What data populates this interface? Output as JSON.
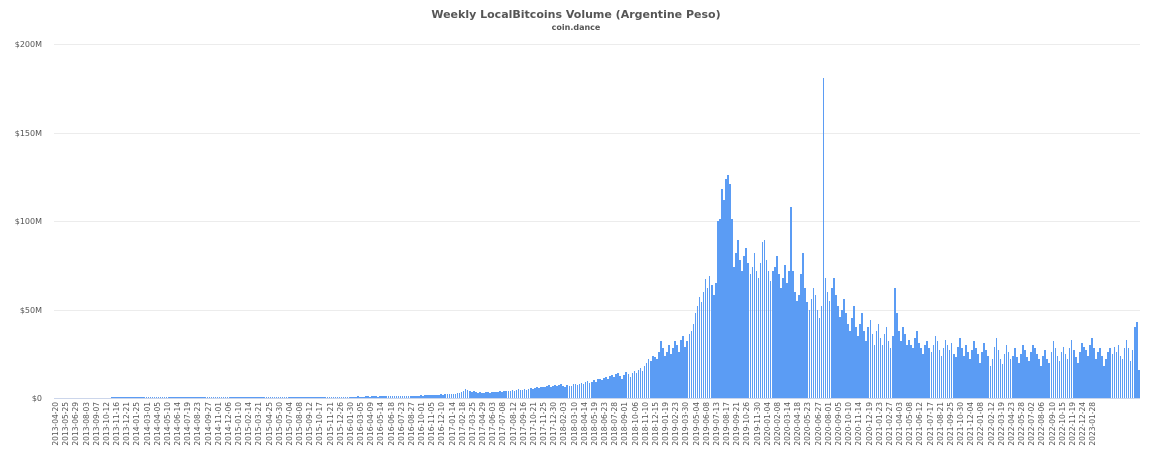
{
  "chart_data": {
    "type": "bar",
    "title": "Weekly LocalBitcoins Volume (Argentine Peso)",
    "subtitle": "coin.dance",
    "xlabel": "",
    "ylabel": "",
    "ylim": [
      0,
      200
    ],
    "y_unit": "$M",
    "y_ticks": [
      "$0",
      "$50M",
      "$100M",
      "$150M",
      "$200M"
    ],
    "grid": true,
    "legend": "none",
    "bar_color": "#5b9cf4",
    "x_start": "2013-04-20",
    "x_interval_days": 7,
    "x_tick_labels": [
      "2013-04-20",
      "2013-05-25",
      "2013-06-29",
      "2013-08-03",
      "2013-09-07",
      "2013-10-12",
      "2013-11-16",
      "2013-12-21",
      "2014-01-25",
      "2014-03-01",
      "2014-04-05",
      "2014-05-10",
      "2014-06-14",
      "2014-07-19",
      "2014-08-23",
      "2014-09-27",
      "2014-11-01",
      "2014-12-06",
      "2015-01-10",
      "2015-02-14",
      "2015-03-21",
      "2015-04-25",
      "2015-05-30",
      "2015-07-04",
      "2015-08-08",
      "2015-09-12",
      "2015-10-17",
      "2015-11-21",
      "2015-12-26",
      "2016-01-30",
      "2016-03-05",
      "2016-04-09",
      "2016-05-14",
      "2016-06-18",
      "2016-07-23",
      "2016-08-27",
      "2016-10-01",
      "2016-11-05",
      "2016-12-10",
      "2017-01-14",
      "2017-02-18",
      "2017-03-25",
      "2017-04-29",
      "2017-06-03",
      "2017-07-08",
      "2017-08-12",
      "2017-09-16",
      "2017-10-21",
      "2017-11-25",
      "2017-12-30",
      "2018-02-03",
      "2018-03-10",
      "2018-04-14",
      "2018-05-19",
      "2018-06-23",
      "2018-07-28",
      "2018-09-01",
      "2018-10-06",
      "2018-11-10",
      "2018-12-15",
      "2019-01-19",
      "2019-02-23",
      "2019-03-30",
      "2019-05-04",
      "2019-06-08",
      "2019-07-13",
      "2019-08-17",
      "2019-09-21",
      "2019-10-26",
      "2019-11-30",
      "2020-01-04",
      "2020-02-08",
      "2020-03-14",
      "2020-04-18",
      "2020-05-23",
      "2020-06-27",
      "2020-08-01",
      "2020-09-05",
      "2020-10-10",
      "2020-11-14",
      "2020-12-19",
      "2021-01-23",
      "2021-02-27",
      "2021-04-03",
      "2021-05-08",
      "2021-06-12",
      "2021-07-17",
      "2021-08-21",
      "2021-09-25",
      "2021-10-30",
      "2021-12-04",
      "2022-01-08",
      "2022-02-12",
      "2022-03-19",
      "2022-04-23",
      "2022-05-28",
      "2022-07-02",
      "2022-08-06",
      "2022-09-10",
      "2022-10-15",
      "2022-11-19",
      "2022-12-24",
      "2023-01-28"
    ],
    "segments_note": "values in $M per week, one entry per week starting x_start",
    "values": [
      0.02,
      0.02,
      0.03,
      0.02,
      0.03,
      0.03,
      0.02,
      0.03,
      0.03,
      0.04,
      0.03,
      0.04,
      0.04,
      0.03,
      0.05,
      0.04,
      0.05,
      0.05,
      0.04,
      0.05,
      0.05,
      0.06,
      0.05,
      0.06,
      0.06,
      0.08,
      0.1,
      0.15,
      0.3,
      0.5,
      0.6,
      0.5,
      0.4,
      0.5,
      0.45,
      0.4,
      0.5,
      0.4,
      0.35,
      0.4,
      0.4,
      0.35,
      0.4,
      0.45,
      0.4,
      0.35,
      0.4,
      0.4,
      0.35,
      0.4,
      0.45,
      0.4,
      0.4,
      0.35,
      0.4,
      0.45,
      0.5,
      0.45,
      0.4,
      0.4,
      0.45,
      0.4,
      0.4,
      0.45,
      0.5,
      0.45,
      0.4,
      0.45,
      0.5,
      0.45,
      0.4,
      0.45,
      0.5,
      0.5,
      0.45,
      0.5,
      0.55,
      0.5,
      0.45,
      0.5,
      0.5,
      0.45,
      0.5,
      0.55,
      0.5,
      0.5,
      0.45,
      0.5,
      0.55,
      0.5,
      0.5,
      0.55,
      0.6,
      0.55,
      0.5,
      0.55,
      0.6,
      0.55,
      0.5,
      0.55,
      0.6,
      0.6,
      0.55,
      0.6,
      0.65,
      0.6,
      0.55,
      0.6,
      0.65,
      0.6,
      0.6,
      0.65,
      0.7,
      0.65,
      0.6,
      0.65,
      0.7,
      0.7,
      0.65,
      0.7,
      0.7,
      0.75,
      0.7,
      0.65,
      0.7,
      0.75,
      0.7,
      0.7,
      0.75,
      0.8,
      0.75,
      0.7,
      0.75,
      0.8,
      0.75,
      0.7,
      0.75,
      0.8,
      0.8,
      0.75,
      0.8,
      0.85,
      0.8,
      0.75,
      0.8,
      0.85,
      0.8,
      0.8,
      0.85,
      0.9,
      0.85,
      0.8,
      0.85,
      0.9,
      0.9,
      0.85,
      0.9,
      0.95,
      0.9,
      0.85,
      0.9,
      0.95,
      1.0,
      0.9,
      0.95,
      1.0,
      1.0,
      0.95,
      1.0,
      1.1,
      1.0,
      1.1,
      1.2,
      1.1,
      1.0,
      1.2,
      1.3,
      1.2,
      1.4,
      1.3,
      1.5,
      1.4,
      1.6,
      1.5,
      1.7,
      1.6,
      1.8,
      1.7,
      1.9,
      1.8,
      2.0,
      1.9,
      2.1,
      2.2,
      2.0,
      2.3,
      2.5,
      2.4,
      2.8,
      3.0,
      3.5,
      4.2,
      5.0,
      4.5,
      4.0,
      3.5,
      3.8,
      3.2,
      3.0,
      3.3,
      3.0,
      2.8,
      3.2,
      3.5,
      3.0,
      3.3,
      3.6,
      3.2,
      3.5,
      3.8,
      3.4,
      3.9,
      4.2,
      3.8,
      4.0,
      4.5,
      4.1,
      4.6,
      5.0,
      4.5,
      4.8,
      5.2,
      4.7,
      5.3,
      5.8,
      5.2,
      5.6,
      6.0,
      5.5,
      6.2,
      6.5,
      6.0,
      6.8,
      7.2,
      6.5,
      7.0,
      7.5,
      6.8,
      7.2,
      8.0,
      7.0,
      6.5,
      7.5,
      6.8,
      7.0,
      7.8,
      8.2,
      7.5,
      8.0,
      8.5,
      8.0,
      8.8,
      9.5,
      8.5,
      9.0,
      10.0,
      9.2,
      10.5,
      11.0,
      10.0,
      11.5,
      12.0,
      11.0,
      12.5,
      13.0,
      12.0,
      13.5,
      14.0,
      12.5,
      11.0,
      13.0,
      14.5,
      13.5,
      12.0,
      14.0,
      15.5,
      14.0,
      16.0,
      17.0,
      15.0,
      18.0,
      20.0,
      22.0,
      21.0,
      24.0,
      23.0,
      22.0,
      26.0,
      32.0,
      28.0,
      24.0,
      26.0,
      30.0,
      25.0,
      28.0,
      32.0,
      30.0,
      26.0,
      33.0,
      35.0,
      29.0,
      32.0,
      36.0,
      38.0,
      42.0,
      48.0,
      52.0,
      57.0,
      54.0,
      60.0,
      67.0,
      62.0,
      69.0,
      64.0,
      58.0,
      65.0,
      100.0,
      101.0,
      118.0,
      112.0,
      124.0,
      126.0,
      121.0,
      101.0,
      74.0,
      82.0,
      89.0,
      78.0,
      72.0,
      80.0,
      85.0,
      76.0,
      70.0,
      74.0,
      82.0,
      72.0,
      68.0,
      76.0,
      88.0,
      89.0,
      78.0,
      72.0,
      66.0,
      72.0,
      74.0,
      80.0,
      70.0,
      62.0,
      68.0,
      75.0,
      65.0,
      72.0,
      108.0,
      72.0,
      60.0,
      55.0,
      58.0,
      70.0,
      82.0,
      62.0,
      54.0,
      50.0,
      56.0,
      62.0,
      58.0,
      50.0,
      45.0,
      52.0,
      181.0,
      68.0,
      60.0,
      55.0,
      62.0,
      68.0,
      58.0,
      52.0,
      46.0,
      50.0,
      56.0,
      48.0,
      42.0,
      38.0,
      45.0,
      52.0,
      40.0,
      35.0,
      42.0,
      48.0,
      38.0,
      32.0,
      40.0,
      44.0,
      36.0,
      30.0,
      38.0,
      42.0,
      34.0,
      30.0,
      36.0,
      40.0,
      32.0,
      28.0,
      35.0,
      62.0,
      48.0,
      38.0,
      32.0,
      40.0,
      36.0,
      30.0,
      33.0,
      30.0,
      28.0,
      34.0,
      38.0,
      31.0,
      28.0,
      25.0,
      30.0,
      32.0,
      28.0,
      26.0,
      30.0,
      35.0,
      32.0,
      27.0,
      24.0,
      28.0,
      33.0,
      30.0,
      27.0,
      31.0,
      25.0,
      23.0,
      29.0,
      34.0,
      28.0,
      24.0,
      30.0,
      26.0,
      22.0,
      27.0,
      32.0,
      28.0,
      25.0,
      20.0,
      26.0,
      31.0,
      27.0,
      24.0,
      18.0,
      22.0,
      29.0,
      34.0,
      27.0,
      22.0,
      19.0,
      25.0,
      30.0,
      26.0,
      22.0,
      24.0,
      28.0,
      23.0,
      20.0,
      25.0,
      30.0,
      27.0,
      23.0,
      21.0,
      26.0,
      30.0,
      28.0,
      25.0,
      22.0,
      18.0,
      24.0,
      27.0,
      22.0,
      20.0,
      26.0,
      32.0,
      28.0,
      24.0,
      21.0,
      26.0,
      29.0,
      25.0,
      22.0,
      28.0,
      33.0,
      27.0,
      23.0,
      20.0,
      26.0,
      31.0,
      29.0,
      27.0,
      24.0,
      30.0,
      34.0,
      28.0,
      22.0,
      26.0,
      28.0,
      24.0,
      18.0,
      22.0,
      26.0,
      28.0,
      25.0,
      29.0,
      26.0,
      30.0,
      24.0,
      22.0,
      28.0,
      33.0,
      28.0,
      21.0,
      27.0,
      40.0,
      43.0,
      16.0
    ]
  }
}
